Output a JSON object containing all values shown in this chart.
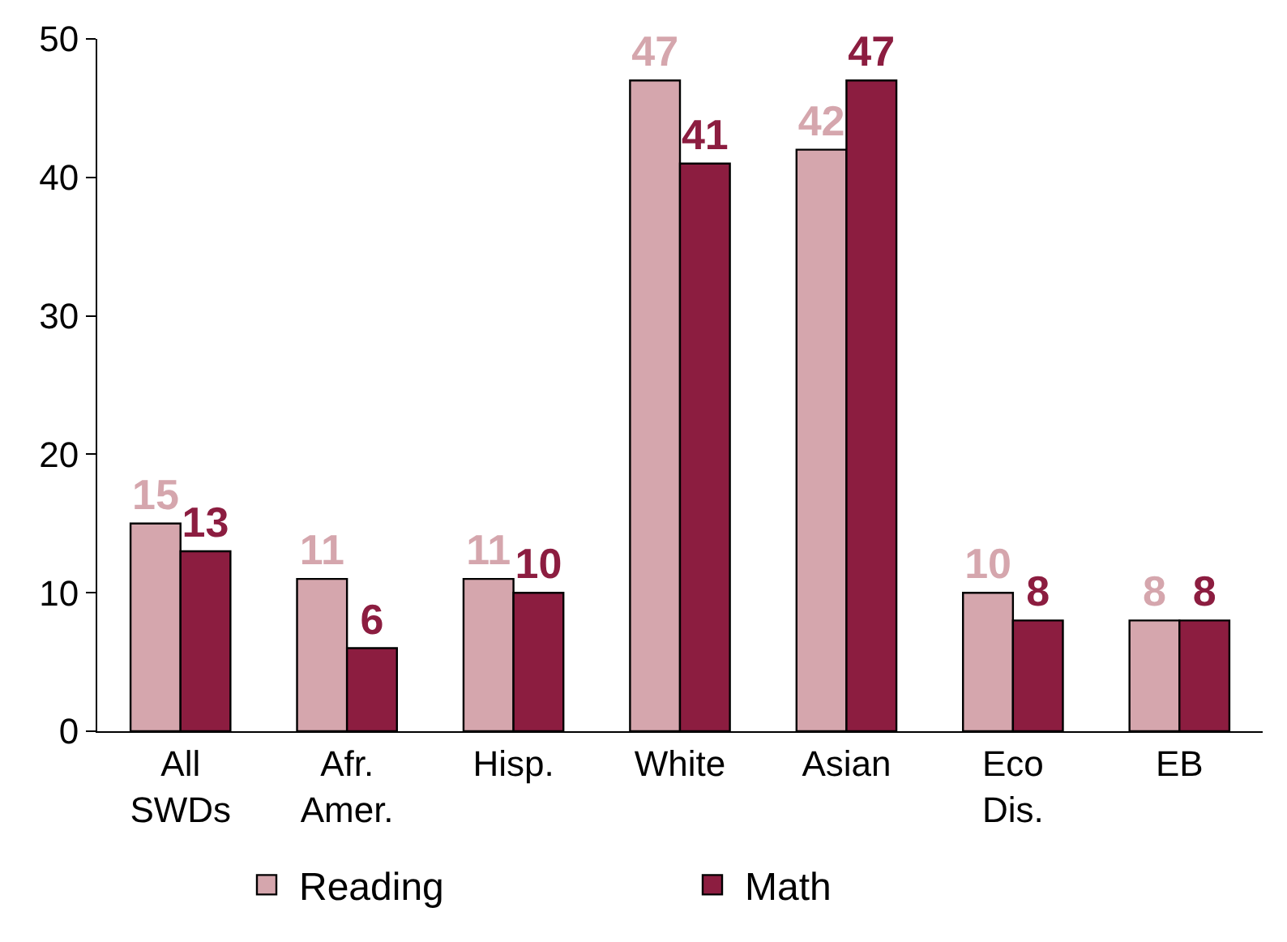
{
  "chart_data": {
    "type": "bar",
    "categories": [
      "All\nSWDs",
      "Afr.\nAmer.",
      "Hisp.",
      "White",
      "Asian",
      "Eco\nDis.",
      "EB"
    ],
    "series": [
      {
        "name": "Reading",
        "color": "#d5a6ad",
        "values": [
          15,
          11,
          11,
          47,
          42,
          10,
          8
        ]
      },
      {
        "name": "Math",
        "color": "#8c1d40",
        "values": [
          13,
          6,
          10,
          41,
          47,
          8,
          8
        ]
      }
    ],
    "ylim": [
      0,
      50
    ],
    "yticks": [
      0,
      10,
      20,
      30,
      40,
      50
    ],
    "legend": "bottom",
    "data_labels": true
  }
}
